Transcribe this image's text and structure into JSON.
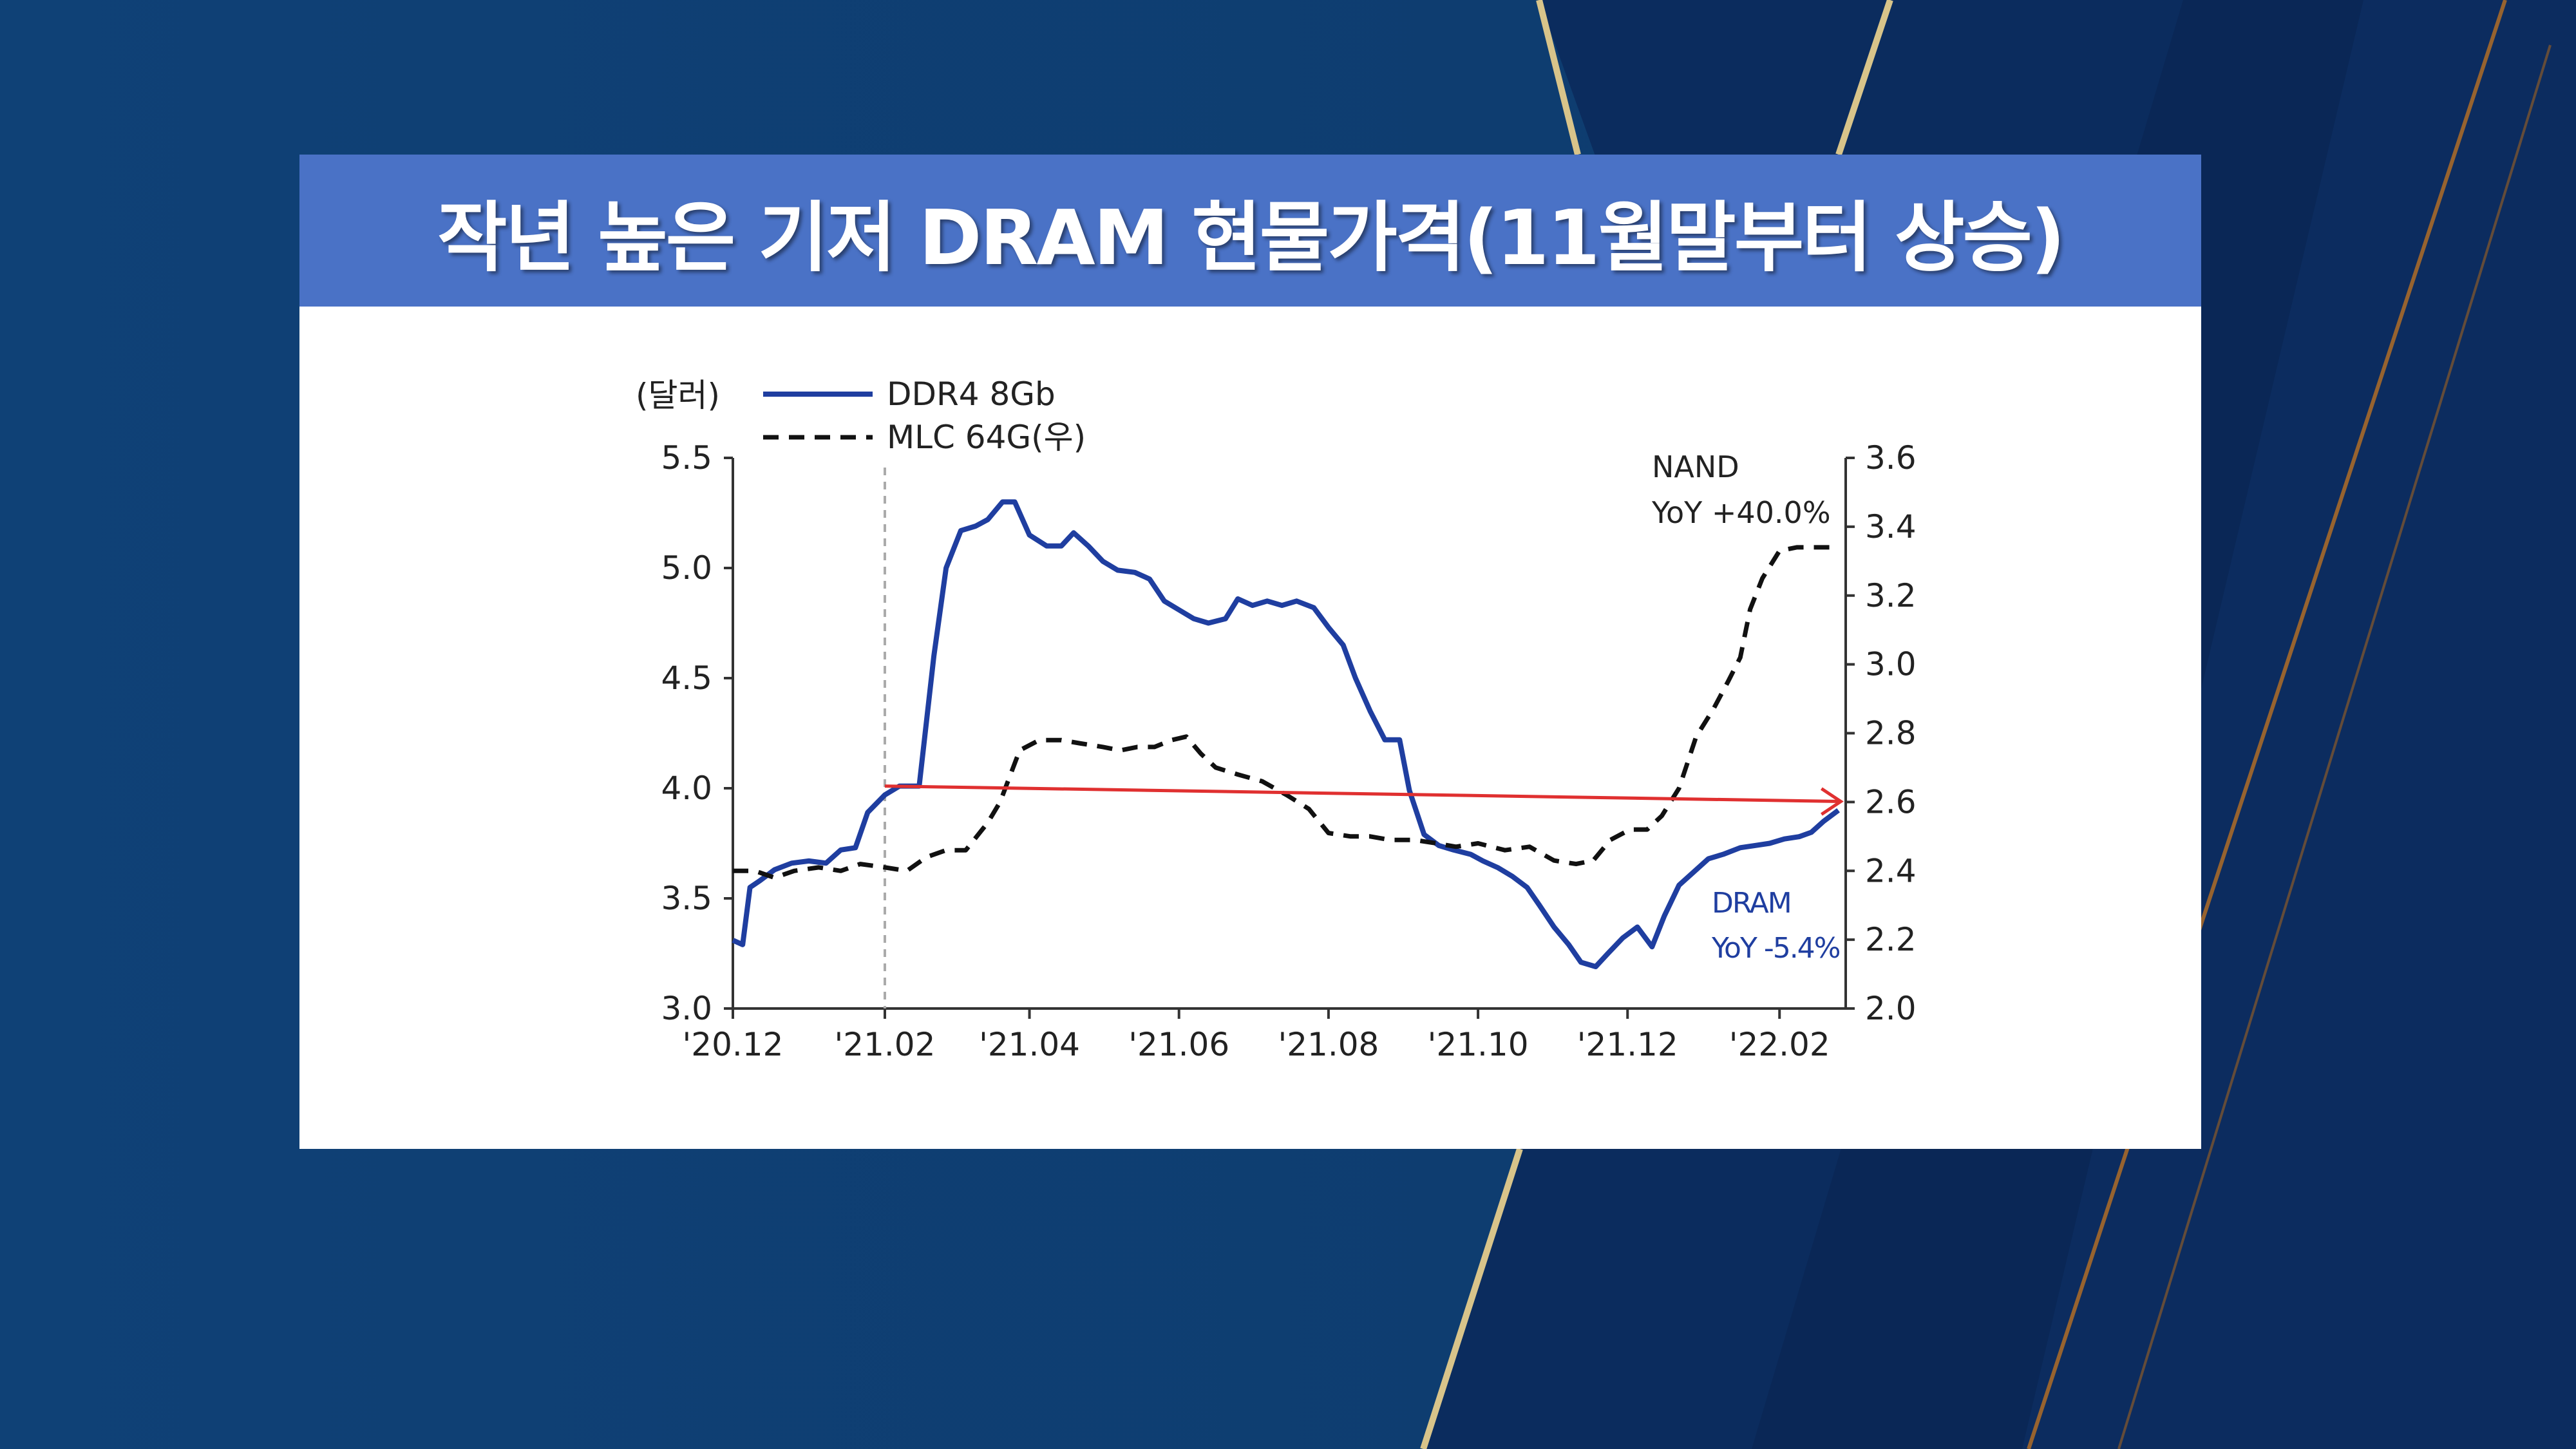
{
  "title": "작년 높은 기저 DRAM 현물가격(11월말부터 상승)",
  "chart_data": {
    "type": "line",
    "y_left_unit": "(달러)",
    "ylim_left": [
      3.0,
      5.5
    ],
    "yticks_left": [
      "3.0",
      "3.5",
      "4.0",
      "4.5",
      "5.0",
      "5.5"
    ],
    "ylim_right": [
      2.0,
      3.6
    ],
    "yticks_right": [
      "2.0",
      "2.2",
      "2.4",
      "2.6",
      "2.8",
      "3.0",
      "3.2",
      "3.4",
      "3.6"
    ],
    "x_range": [
      "2020-12-01",
      "2022-02-28"
    ],
    "x_ticks": [
      {
        "date": "2020-12-01",
        "label": "'20.12"
      },
      {
        "date": "2021-02-01",
        "label": "'21.02"
      },
      {
        "date": "2021-04-01",
        "label": "'21.04"
      },
      {
        "date": "2021-06-01",
        "label": "'21.06"
      },
      {
        "date": "2021-08-01",
        "label": "'21.08"
      },
      {
        "date": "2021-10-01",
        "label": "'21.10"
      },
      {
        "date": "2021-12-01",
        "label": "'21.12"
      },
      {
        "date": "2022-02-01",
        "label": "'22.02"
      }
    ],
    "reference_line_date": "2021-02-01",
    "series": [
      {
        "name": "DDR4 8Gb",
        "axis": "left",
        "color": "#1f3ea0",
        "style": "solid",
        "points": [
          [
            "2020-12-01",
            3.31
          ],
          [
            "2020-12-05",
            3.29
          ],
          [
            "2020-12-08",
            3.55
          ],
          [
            "2020-12-12",
            3.58
          ],
          [
            "2020-12-18",
            3.63
          ],
          [
            "2020-12-25",
            3.66
          ],
          [
            "2021-01-01",
            3.67
          ],
          [
            "2021-01-08",
            3.66
          ],
          [
            "2021-01-14",
            3.72
          ],
          [
            "2021-01-20",
            3.73
          ],
          [
            "2021-01-25",
            3.89
          ],
          [
            "2021-02-01",
            3.97
          ],
          [
            "2021-02-07",
            4.01
          ],
          [
            "2021-02-15",
            4.01
          ],
          [
            "2021-02-21",
            4.6
          ],
          [
            "2021-02-26",
            5.0
          ],
          [
            "2021-03-04",
            5.17
          ],
          [
            "2021-03-10",
            5.19
          ],
          [
            "2021-03-15",
            5.22
          ],
          [
            "2021-03-21",
            5.3
          ],
          [
            "2021-03-26",
            5.3
          ],
          [
            "2021-04-01",
            5.15
          ],
          [
            "2021-04-08",
            5.1
          ],
          [
            "2021-04-14",
            5.1
          ],
          [
            "2021-04-19",
            5.16
          ],
          [
            "2021-04-25",
            5.1
          ],
          [
            "2021-05-01",
            5.03
          ],
          [
            "2021-05-07",
            4.99
          ],
          [
            "2021-05-14",
            4.98
          ],
          [
            "2021-05-20",
            4.95
          ],
          [
            "2021-05-26",
            4.85
          ],
          [
            "2021-06-01",
            4.81
          ],
          [
            "2021-06-07",
            4.77
          ],
          [
            "2021-06-13",
            4.75
          ],
          [
            "2021-06-20",
            4.77
          ],
          [
            "2021-06-25",
            4.86
          ],
          [
            "2021-07-01",
            4.83
          ],
          [
            "2021-07-07",
            4.85
          ],
          [
            "2021-07-13",
            4.83
          ],
          [
            "2021-07-19",
            4.85
          ],
          [
            "2021-07-26",
            4.82
          ],
          [
            "2021-08-01",
            4.73
          ],
          [
            "2021-08-07",
            4.65
          ],
          [
            "2021-08-12",
            4.5
          ],
          [
            "2021-08-18",
            4.35
          ],
          [
            "2021-08-24",
            4.22
          ],
          [
            "2021-08-30",
            4.22
          ],
          [
            "2021-09-03",
            3.99
          ],
          [
            "2021-09-09",
            3.79
          ],
          [
            "2021-09-15",
            3.74
          ],
          [
            "2021-09-21",
            3.72
          ],
          [
            "2021-09-28",
            3.7
          ],
          [
            "2021-10-03",
            3.67
          ],
          [
            "2021-10-09",
            3.64
          ],
          [
            "2021-10-15",
            3.6
          ],
          [
            "2021-10-21",
            3.55
          ],
          [
            "2021-10-26",
            3.47
          ],
          [
            "2021-11-01",
            3.37
          ],
          [
            "2021-11-07",
            3.29
          ],
          [
            "2021-11-12",
            3.21
          ],
          [
            "2021-11-18",
            3.19
          ],
          [
            "2021-11-23",
            3.25
          ],
          [
            "2021-11-29",
            3.32
          ],
          [
            "2021-12-05",
            3.37
          ],
          [
            "2021-12-11",
            3.28
          ],
          [
            "2021-12-16",
            3.42
          ],
          [
            "2021-12-22",
            3.56
          ],
          [
            "2021-12-28",
            3.62
          ],
          [
            "2022-01-03",
            3.68
          ],
          [
            "2022-01-09",
            3.7
          ],
          [
            "2022-01-16",
            3.73
          ],
          [
            "2022-01-22",
            3.74
          ],
          [
            "2022-01-28",
            3.75
          ],
          [
            "2022-02-03",
            3.77
          ],
          [
            "2022-02-09",
            3.78
          ],
          [
            "2022-02-14",
            3.8
          ],
          [
            "2022-02-19",
            3.85
          ],
          [
            "2022-02-25",
            3.9
          ]
        ]
      },
      {
        "name": "MLC 64G(우)",
        "axis": "right",
        "color": "#111111",
        "style": "dashed",
        "points": [
          [
            "2020-12-01",
            2.4
          ],
          [
            "2020-12-10",
            2.4
          ],
          [
            "2020-12-18",
            2.38
          ],
          [
            "2020-12-26",
            2.4
          ],
          [
            "2021-01-05",
            2.41
          ],
          [
            "2021-01-14",
            2.4
          ],
          [
            "2021-01-22",
            2.42
          ],
          [
            "2021-02-01",
            2.41
          ],
          [
            "2021-02-10",
            2.4
          ],
          [
            "2021-02-18",
            2.44
          ],
          [
            "2021-02-26",
            2.46
          ],
          [
            "2021-03-06",
            2.46
          ],
          [
            "2021-03-15",
            2.54
          ],
          [
            "2021-03-20",
            2.6
          ],
          [
            "2021-03-28",
            2.75
          ],
          [
            "2021-04-05",
            2.78
          ],
          [
            "2021-04-14",
            2.78
          ],
          [
            "2021-04-22",
            2.77
          ],
          [
            "2021-05-01",
            2.76
          ],
          [
            "2021-05-08",
            2.75
          ],
          [
            "2021-05-15",
            2.76
          ],
          [
            "2021-05-22",
            2.76
          ],
          [
            "2021-05-29",
            2.78
          ],
          [
            "2021-06-04",
            2.79
          ],
          [
            "2021-06-10",
            2.74
          ],
          [
            "2021-06-16",
            2.7
          ],
          [
            "2021-06-25",
            2.68
          ],
          [
            "2021-07-05",
            2.66
          ],
          [
            "2021-07-15",
            2.62
          ],
          [
            "2021-07-24",
            2.58
          ],
          [
            "2021-08-01",
            2.51
          ],
          [
            "2021-08-10",
            2.5
          ],
          [
            "2021-08-18",
            2.5
          ],
          [
            "2021-08-26",
            2.49
          ],
          [
            "2021-09-05",
            2.49
          ],
          [
            "2021-09-14",
            2.48
          ],
          [
            "2021-09-22",
            2.47
          ],
          [
            "2021-10-01",
            2.48
          ],
          [
            "2021-10-12",
            2.46
          ],
          [
            "2021-10-22",
            2.47
          ],
          [
            "2021-11-01",
            2.43
          ],
          [
            "2021-11-10",
            2.42
          ],
          [
            "2021-11-17",
            2.43
          ],
          [
            "2021-11-24",
            2.49
          ],
          [
            "2021-12-02",
            2.52
          ],
          [
            "2021-12-09",
            2.52
          ],
          [
            "2021-12-15",
            2.56
          ],
          [
            "2021-12-22",
            2.64
          ],
          [
            "2021-12-29",
            2.79
          ],
          [
            "2022-01-05",
            2.87
          ],
          [
            "2022-01-11",
            2.95
          ],
          [
            "2022-01-16",
            3.02
          ],
          [
            "2022-01-20",
            3.16
          ],
          [
            "2022-01-25",
            3.25
          ],
          [
            "2022-02-01",
            3.33
          ],
          [
            "2022-02-08",
            3.34
          ],
          [
            "2022-02-15",
            3.34
          ],
          [
            "2022-02-25",
            3.34
          ]
        ]
      }
    ],
    "trend_arrow": {
      "color": "#e03030",
      "from": {
        "date": "2021-02-01",
        "value": 4.01
      },
      "to": {
        "date": "2022-02-26",
        "value": 3.94
      }
    },
    "annotations": [
      {
        "id": "nand",
        "lines": [
          "NAND",
          "YoY +40.0%"
        ],
        "color": "#222222"
      },
      {
        "id": "dram",
        "lines": [
          "DRAM",
          "YoY -5.4%"
        ],
        "color": "#1f3ea0"
      }
    ]
  }
}
